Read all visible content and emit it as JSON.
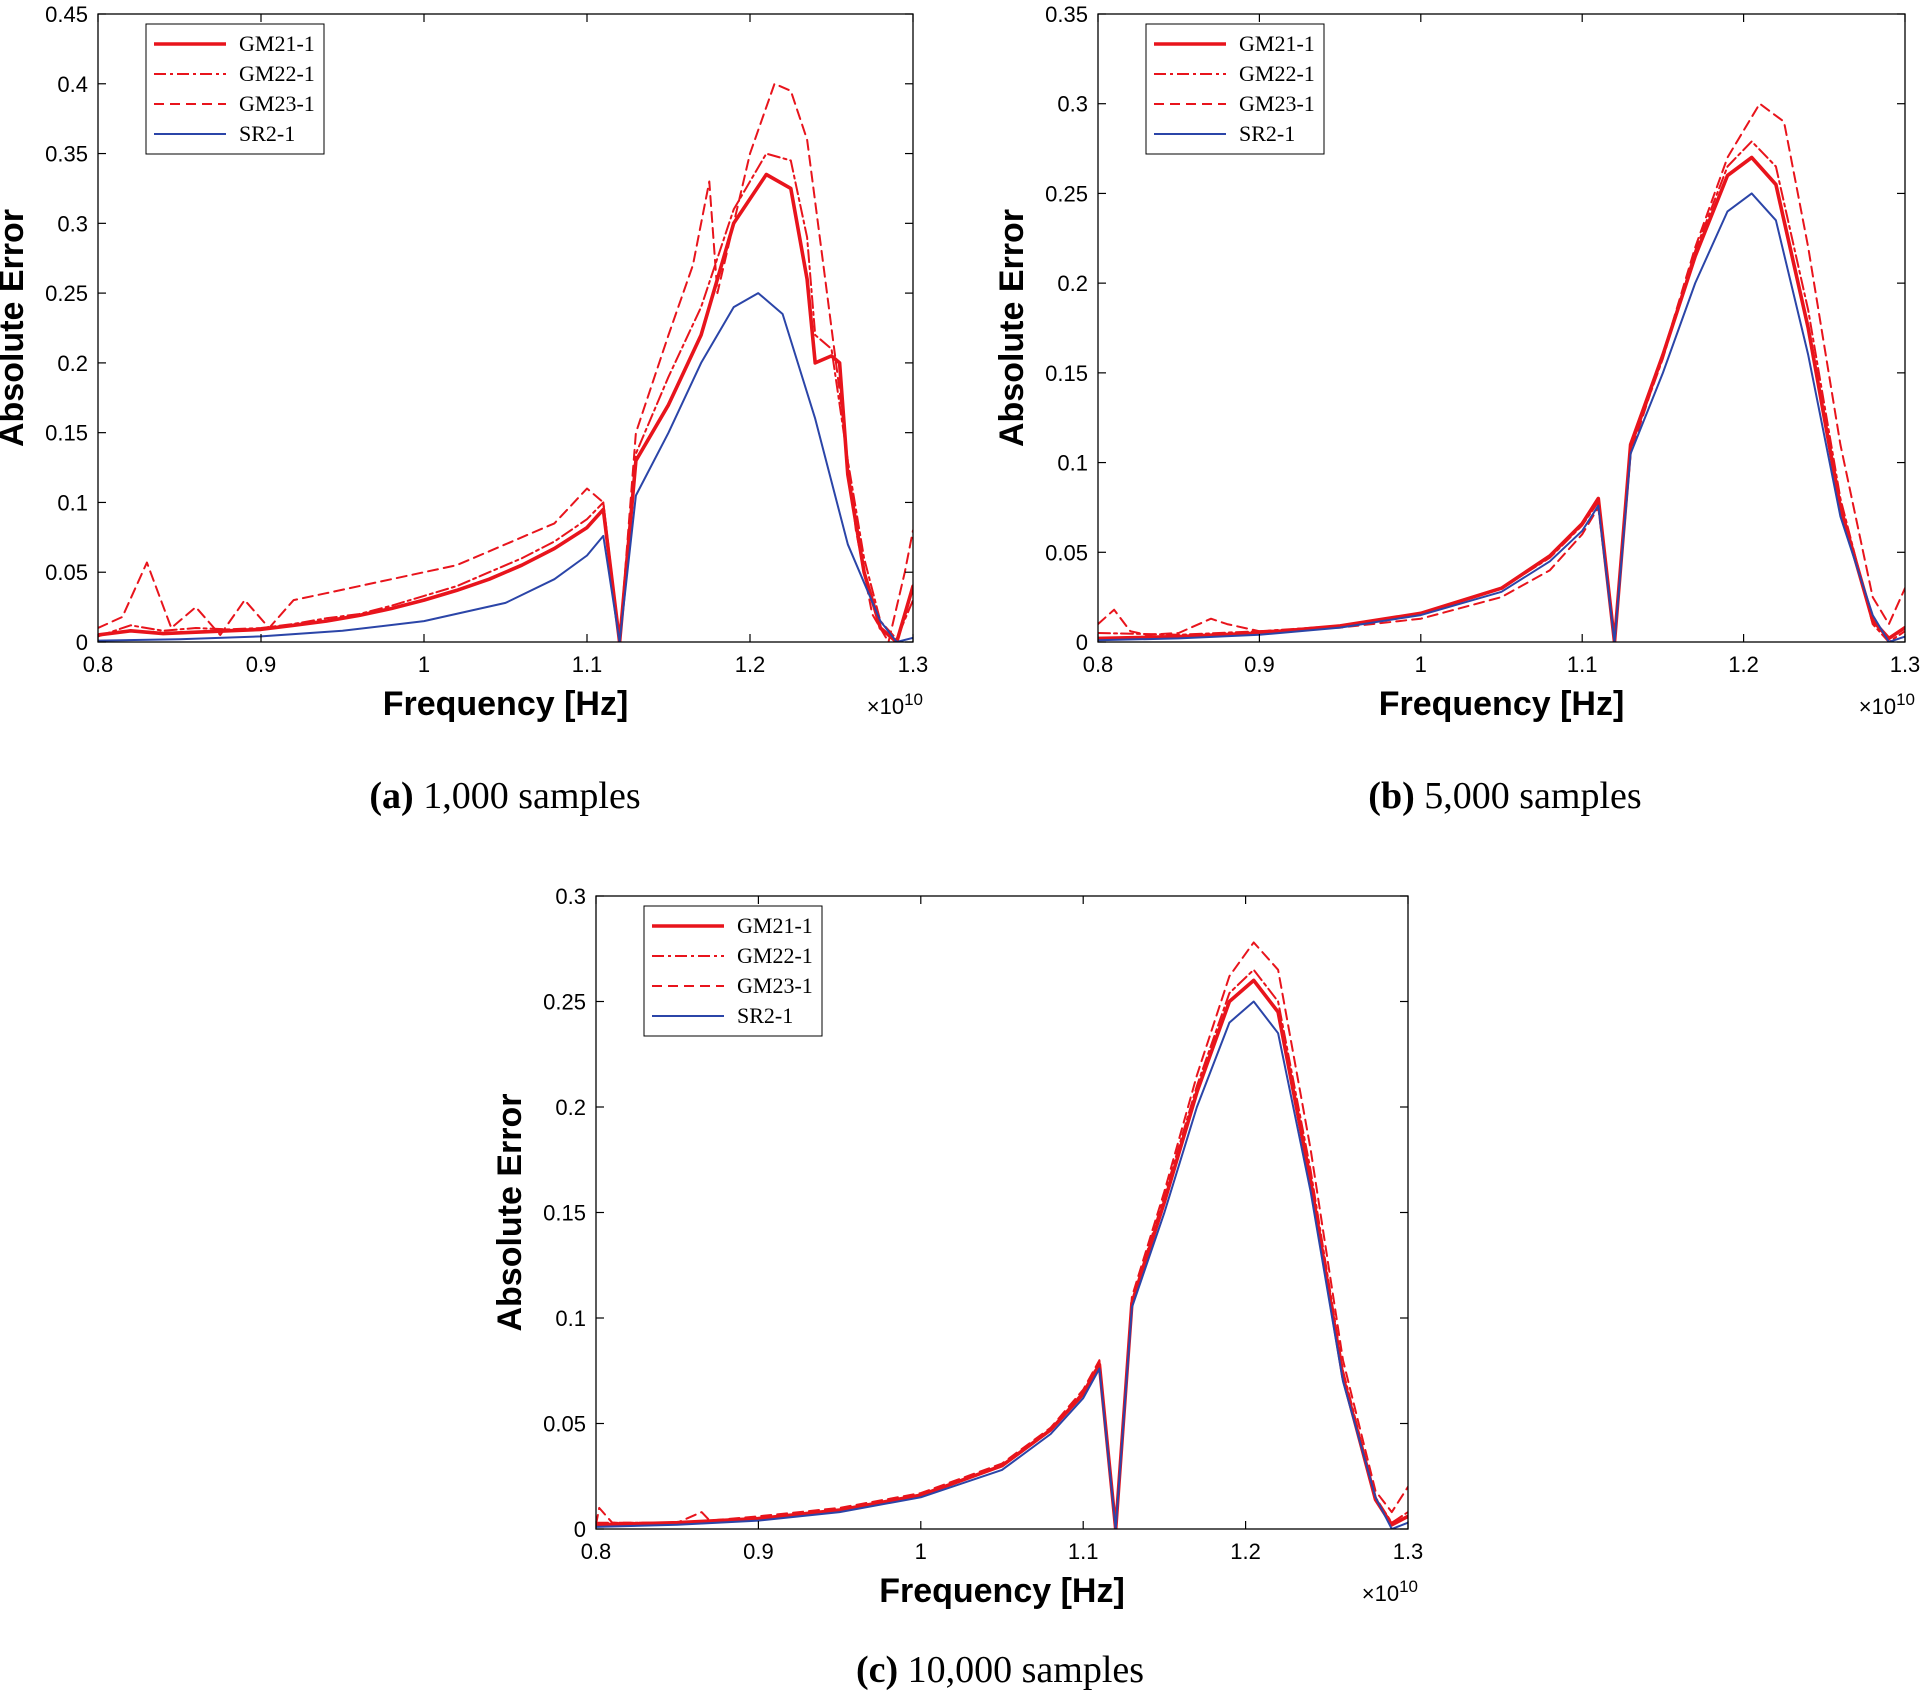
{
  "figure": {
    "colors": {
      "gm": "#e8141c",
      "sr": "#2b45a8",
      "axis": "#000000"
    }
  },
  "chart_data": [
    {
      "type": "line",
      "id": "a",
      "caption_label": "(a)",
      "caption_text": "1,000 samples",
      "xlabel": "Frequency [Hz]",
      "ylabel": "Absolute Error",
      "x_exponent_prefix": "×10",
      "x_exponent_power": "10",
      "xlim": [
        0.8,
        1.3
      ],
      "ylim": [
        0,
        0.45
      ],
      "xticks": [
        "0.8",
        "0.9",
        "1",
        "1.1",
        "1.2",
        "1.3"
      ],
      "yticks": [
        "0",
        "0.05",
        "0.1",
        "0.15",
        "0.2",
        "0.25",
        "0.3",
        "0.35",
        "0.4",
        "0.45"
      ],
      "legend_position": "top-left",
      "series": [
        {
          "name": "GM21-1",
          "style": "solid-thick",
          "x": [
            0.8,
            0.82,
            0.84,
            0.86,
            0.88,
            0.9,
            0.92,
            0.94,
            0.96,
            0.98,
            1.0,
            1.02,
            1.04,
            1.06,
            1.08,
            1.1,
            1.11,
            1.12,
            1.13,
            1.15,
            1.17,
            1.19,
            1.21,
            1.225,
            1.235,
            1.24,
            1.25,
            1.255,
            1.26,
            1.27,
            1.28,
            1.29,
            1.3
          ],
          "y": [
            0.005,
            0.008,
            0.006,
            0.007,
            0.008,
            0.009,
            0.012,
            0.015,
            0.019,
            0.024,
            0.03,
            0.037,
            0.045,
            0.055,
            0.067,
            0.082,
            0.095,
            0.0,
            0.13,
            0.17,
            0.22,
            0.3,
            0.335,
            0.325,
            0.26,
            0.2,
            0.205,
            0.2,
            0.12,
            0.05,
            0.01,
            0.0,
            0.04
          ]
        },
        {
          "name": "GM22-1",
          "style": "dashdot",
          "x": [
            0.8,
            0.82,
            0.84,
            0.86,
            0.88,
            0.9,
            0.92,
            0.94,
            0.96,
            0.98,
            1.0,
            1.02,
            1.04,
            1.06,
            1.08,
            1.1,
            1.11,
            1.12,
            1.13,
            1.15,
            1.17,
            1.19,
            1.21,
            1.225,
            1.235,
            1.24,
            1.25,
            1.26,
            1.27,
            1.28,
            1.29,
            1.3
          ],
          "y": [
            0.004,
            0.012,
            0.008,
            0.01,
            0.009,
            0.01,
            0.013,
            0.017,
            0.02,
            0.026,
            0.033,
            0.04,
            0.05,
            0.06,
            0.072,
            0.088,
            0.1,
            0.0,
            0.135,
            0.19,
            0.24,
            0.31,
            0.35,
            0.345,
            0.29,
            0.22,
            0.21,
            0.13,
            0.06,
            0.015,
            0.002,
            0.03
          ]
        },
        {
          "name": "GM23-1",
          "style": "dashed",
          "x": [
            0.8,
            0.815,
            0.83,
            0.845,
            0.86,
            0.875,
            0.89,
            0.905,
            0.92,
            0.94,
            0.96,
            0.98,
            1.0,
            1.02,
            1.04,
            1.06,
            1.08,
            1.1,
            1.11,
            1.12,
            1.13,
            1.15,
            1.165,
            1.175,
            1.18,
            1.2,
            1.215,
            1.225,
            1.235,
            1.245,
            1.255,
            1.265,
            1.275,
            1.285,
            1.295,
            1.3
          ],
          "y": [
            0.01,
            0.018,
            0.057,
            0.01,
            0.025,
            0.005,
            0.03,
            0.01,
            0.03,
            0.035,
            0.04,
            0.045,
            0.05,
            0.055,
            0.065,
            0.075,
            0.085,
            0.11,
            0.1,
            0.0,
            0.15,
            0.22,
            0.27,
            0.33,
            0.25,
            0.35,
            0.4,
            0.395,
            0.36,
            0.27,
            0.18,
            0.08,
            0.02,
            0.0,
            0.05,
            0.08
          ]
        },
        {
          "name": "SR2-1",
          "style": "solid-thin",
          "x": [
            0.8,
            0.85,
            0.9,
            0.95,
            1.0,
            1.05,
            1.08,
            1.1,
            1.11,
            1.12,
            1.13,
            1.15,
            1.17,
            1.19,
            1.205,
            1.22,
            1.24,
            1.26,
            1.28,
            1.29,
            1.3
          ],
          "y": [
            0.001,
            0.002,
            0.004,
            0.008,
            0.015,
            0.028,
            0.045,
            0.062,
            0.076,
            0.0,
            0.105,
            0.15,
            0.2,
            0.24,
            0.25,
            0.235,
            0.16,
            0.07,
            0.015,
            0.0,
            0.003
          ]
        }
      ]
    },
    {
      "type": "line",
      "id": "b",
      "caption_label": "(b)",
      "caption_text": "5,000 samples",
      "xlabel": "Frequency [Hz]",
      "ylabel": "Absolute Error",
      "x_exponent_prefix": "×10",
      "x_exponent_power": "10",
      "xlim": [
        0.8,
        1.3
      ],
      "ylim": [
        0,
        0.35
      ],
      "xticks": [
        "0.8",
        "0.9",
        "1",
        "1.1",
        "1.2",
        "1.3"
      ],
      "yticks": [
        "0",
        "0.05",
        "0.1",
        "0.15",
        "0.2",
        "0.25",
        "0.3",
        "0.35"
      ],
      "legend_position": "top-left",
      "series": [
        {
          "name": "GM21-1",
          "style": "solid-thick",
          "x": [
            0.8,
            0.85,
            0.9,
            0.95,
            1.0,
            1.05,
            1.08,
            1.1,
            1.11,
            1.12,
            1.13,
            1.15,
            1.17,
            1.19,
            1.205,
            1.22,
            1.24,
            1.26,
            1.28,
            1.29,
            1.3
          ],
          "y": [
            0.002,
            0.003,
            0.005,
            0.009,
            0.016,
            0.03,
            0.048,
            0.066,
            0.08,
            0.0,
            0.11,
            0.16,
            0.215,
            0.26,
            0.27,
            0.255,
            0.175,
            0.075,
            0.012,
            0.002,
            0.008
          ]
        },
        {
          "name": "GM22-1",
          "style": "dashdot",
          "x": [
            0.8,
            0.85,
            0.9,
            0.95,
            1.0,
            1.05,
            1.08,
            1.1,
            1.11,
            1.12,
            1.13,
            1.15,
            1.17,
            1.19,
            1.205,
            1.22,
            1.24,
            1.26,
            1.28,
            1.29,
            1.3
          ],
          "y": [
            0.005,
            0.004,
            0.006,
            0.009,
            0.016,
            0.03,
            0.047,
            0.065,
            0.078,
            0.0,
            0.108,
            0.158,
            0.218,
            0.265,
            0.279,
            0.265,
            0.185,
            0.08,
            0.01,
            0.0,
            0.006
          ]
        },
        {
          "name": "GM23-1",
          "style": "dashed",
          "x": [
            0.8,
            0.81,
            0.82,
            0.83,
            0.85,
            0.87,
            0.88,
            0.9,
            0.95,
            1.0,
            1.05,
            1.08,
            1.1,
            1.11,
            1.12,
            1.13,
            1.15,
            1.17,
            1.19,
            1.21,
            1.225,
            1.24,
            1.26,
            1.28,
            1.29,
            1.3
          ],
          "y": [
            0.01,
            0.018,
            0.006,
            0.004,
            0.005,
            0.013,
            0.01,
            0.006,
            0.008,
            0.013,
            0.025,
            0.04,
            0.06,
            0.075,
            0.0,
            0.105,
            0.16,
            0.22,
            0.27,
            0.3,
            0.29,
            0.22,
            0.11,
            0.025,
            0.01,
            0.03
          ]
        },
        {
          "name": "SR2-1",
          "style": "solid-thin",
          "x": [
            0.8,
            0.85,
            0.9,
            0.95,
            1.0,
            1.05,
            1.08,
            1.1,
            1.11,
            1.12,
            1.13,
            1.15,
            1.17,
            1.19,
            1.205,
            1.22,
            1.24,
            1.26,
            1.28,
            1.29,
            1.3
          ],
          "y": [
            0.001,
            0.002,
            0.004,
            0.008,
            0.015,
            0.028,
            0.045,
            0.062,
            0.076,
            0.0,
            0.105,
            0.15,
            0.2,
            0.24,
            0.25,
            0.235,
            0.16,
            0.07,
            0.015,
            0.0,
            0.003
          ]
        }
      ]
    },
    {
      "type": "line",
      "id": "c",
      "caption_label": "(c)",
      "caption_text": "10,000 samples",
      "xlabel": "Frequency [Hz]",
      "ylabel": "Absolute Error",
      "x_exponent_prefix": "×10",
      "x_exponent_power": "10",
      "xlim": [
        0.8,
        1.3
      ],
      "ylim": [
        0,
        0.3
      ],
      "xticks": [
        "0.8",
        "0.9",
        "1",
        "1.1",
        "1.2",
        "1.3"
      ],
      "yticks": [
        "0",
        "0.05",
        "0.1",
        "0.15",
        "0.2",
        "0.25",
        "0.3"
      ],
      "legend_position": "top-left",
      "series": [
        {
          "name": "GM21-1",
          "style": "solid-thick",
          "x": [
            0.8,
            0.85,
            0.9,
            0.95,
            1.0,
            1.05,
            1.08,
            1.1,
            1.11,
            1.12,
            1.13,
            1.15,
            1.17,
            1.19,
            1.205,
            1.22,
            1.24,
            1.26,
            1.28,
            1.29,
            1.3
          ],
          "y": [
            0.002,
            0.003,
            0.005,
            0.009,
            0.016,
            0.03,
            0.047,
            0.064,
            0.078,
            0.0,
            0.107,
            0.155,
            0.207,
            0.25,
            0.26,
            0.245,
            0.165,
            0.072,
            0.014,
            0.002,
            0.006
          ]
        },
        {
          "name": "GM22-1",
          "style": "dashdot",
          "x": [
            0.8,
            0.85,
            0.9,
            0.95,
            1.0,
            1.05,
            1.08,
            1.1,
            1.11,
            1.12,
            1.13,
            1.15,
            1.17,
            1.19,
            1.205,
            1.22,
            1.24,
            1.26,
            1.28,
            1.29,
            1.3
          ],
          "y": [
            0.003,
            0.003,
            0.005,
            0.009,
            0.016,
            0.03,
            0.047,
            0.065,
            0.079,
            0.0,
            0.108,
            0.158,
            0.21,
            0.254,
            0.265,
            0.25,
            0.17,
            0.075,
            0.015,
            0.003,
            0.008
          ]
        },
        {
          "name": "GM23-1",
          "style": "dashed",
          "x": [
            0.8,
            0.802,
            0.81,
            0.85,
            0.865,
            0.87,
            0.9,
            0.95,
            1.0,
            1.05,
            1.08,
            1.1,
            1.11,
            1.12,
            1.13,
            1.15,
            1.17,
            1.19,
            1.205,
            1.22,
            1.24,
            1.26,
            1.28,
            1.29,
            1.3
          ],
          "y": [
            0.002,
            0.01,
            0.003,
            0.003,
            0.008,
            0.004,
            0.006,
            0.01,
            0.017,
            0.031,
            0.048,
            0.066,
            0.08,
            0.0,
            0.11,
            0.16,
            0.215,
            0.262,
            0.278,
            0.265,
            0.18,
            0.08,
            0.018,
            0.008,
            0.02
          ]
        },
        {
          "name": "SR2-1",
          "style": "solid-thin",
          "x": [
            0.8,
            0.85,
            0.9,
            0.95,
            1.0,
            1.05,
            1.08,
            1.1,
            1.11,
            1.12,
            1.13,
            1.15,
            1.17,
            1.19,
            1.205,
            1.22,
            1.24,
            1.26,
            1.28,
            1.29,
            1.3
          ],
          "y": [
            0.001,
            0.002,
            0.004,
            0.008,
            0.015,
            0.028,
            0.045,
            0.062,
            0.076,
            0.0,
            0.105,
            0.15,
            0.2,
            0.24,
            0.25,
            0.235,
            0.16,
            0.07,
            0.015,
            0.0,
            0.003
          ]
        }
      ]
    }
  ]
}
